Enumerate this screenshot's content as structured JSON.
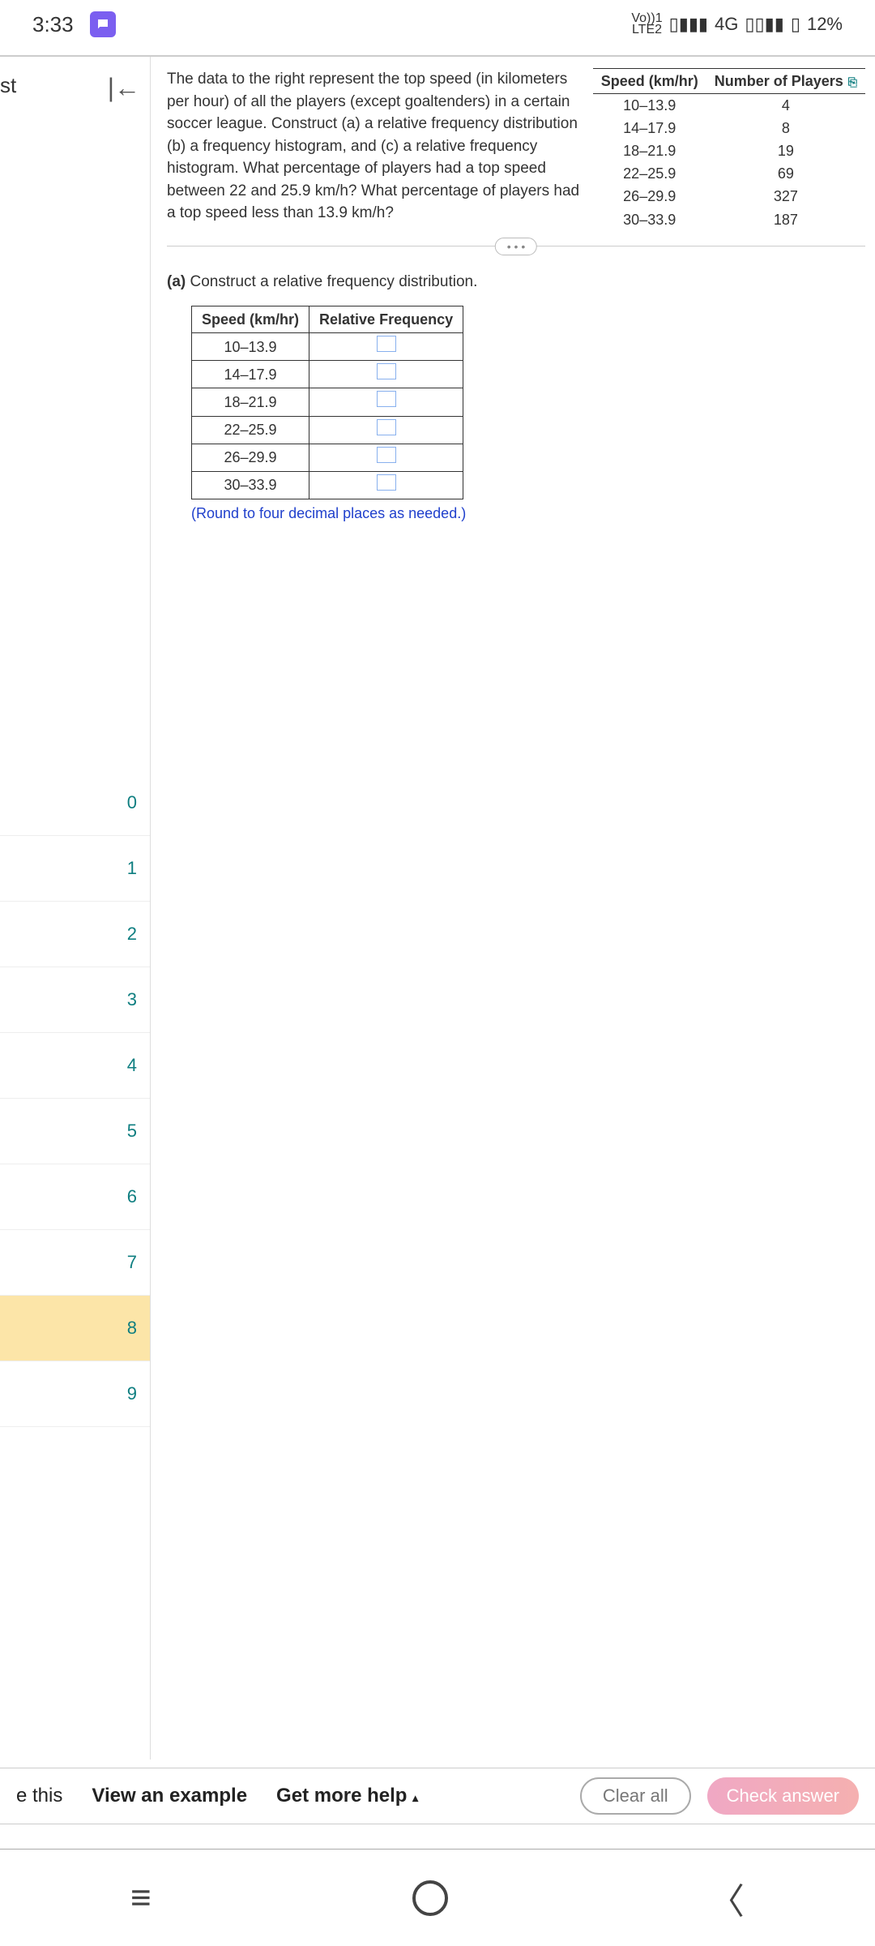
{
  "status": {
    "time": "3:33",
    "volte": "Vo)) 1\nLTE 2",
    "signal1": "▮▮▮",
    "network": "4G",
    "signal2": "▮▮",
    "battery": "12%"
  },
  "sidebar": {
    "title": "st",
    "items": [
      "0",
      "1",
      "2",
      "3",
      "4",
      "5",
      "6",
      "7",
      "8",
      "9"
    ],
    "active_index": 8
  },
  "problem": {
    "text": "The data to the right represent the top speed (in kilometers per hour) of all the players (except goaltenders) in a certain soccer league. Construct (a) a relative frequency distribution (b) a frequency histogram, and (c) a relative frequency histogram. What percentage of players had a top speed between 22 and 25.9 km/h? What percentage of players had a top speed less than 13.9 km/h?",
    "data_table": {
      "headers": [
        "Speed (km/hr)",
        "Number of Players"
      ],
      "rows": [
        [
          "10–13.9",
          "4"
        ],
        [
          "14–17.9",
          "8"
        ],
        [
          "18–21.9",
          "19"
        ],
        [
          "22–25.9",
          "69"
        ],
        [
          "26–29.9",
          "327"
        ],
        [
          "30–33.9",
          "187"
        ]
      ]
    },
    "part_a_label": "(a)",
    "part_a_text": "Construct a relative frequency distribution.",
    "freq_table": {
      "headers": [
        "Speed (km/hr)",
        "Relative Frequency"
      ],
      "rows": [
        "10–13.9",
        "14–17.9",
        "18–21.9",
        "22–25.9",
        "26–29.9",
        "30–33.9"
      ]
    },
    "round_note": "(Round to four decimal places as needed.)"
  },
  "toolbar": {
    "e_this": "e this",
    "view_example": "View an example",
    "get_help": "Get more help",
    "clear_all": "Clear all",
    "check_answer": "Check answer"
  }
}
